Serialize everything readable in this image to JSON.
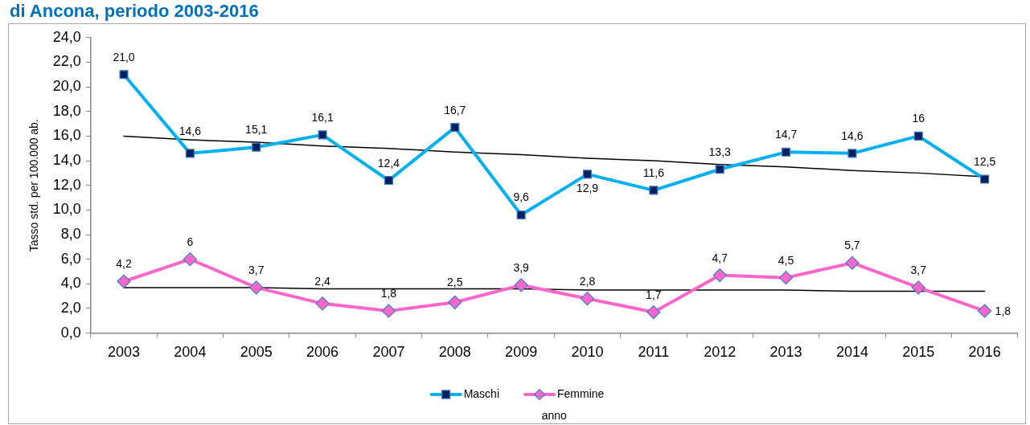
{
  "chart_data": {
    "type": "line",
    "title": "di Ancona, periodo 2003-2016",
    "xlabel": "anno",
    "ylabel": "Tasso std. per 100.000 ab.",
    "categories": [
      "2003",
      "2004",
      "2005",
      "2006",
      "2007",
      "2008",
      "2009",
      "2010",
      "2011",
      "2012",
      "2013",
      "2014",
      "2015",
      "2016"
    ],
    "ylim": [
      0,
      24
    ],
    "yticks": [
      {
        "value": 0,
        "label": "0,0"
      },
      {
        "value": 2,
        "label": "2,0"
      },
      {
        "value": 4,
        "label": "4,0"
      },
      {
        "value": 6,
        "label": "6,0"
      },
      {
        "value": 8,
        "label": "8,0"
      },
      {
        "value": 10,
        "label": "10,0"
      },
      {
        "value": 12,
        "label": "12,0"
      },
      {
        "value": 14,
        "label": "14,0"
      },
      {
        "value": 16,
        "label": "16,0"
      },
      {
        "value": 18,
        "label": "18,0"
      },
      {
        "value": 20,
        "label": "20,0"
      },
      {
        "value": 22,
        "label": "22,0"
      },
      {
        "value": 24,
        "label": "24,0"
      }
    ],
    "legend": "bottom",
    "series": [
      {
        "name": "Maschi",
        "color": "#00b0f0",
        "colors": [
          "#002060",
          "#002060",
          "#002060",
          "#002060",
          "#002060",
          "#002060",
          "#002060",
          "#002060",
          "#002060",
          "#002060",
          "#002060",
          "#002060",
          "#002060",
          "#002060"
        ],
        "marker": "square",
        "values": [
          21.0,
          14.6,
          15.1,
          16.1,
          12.4,
          16.7,
          9.6,
          12.9,
          11.6,
          13.3,
          14.7,
          14.6,
          16,
          12.5
        ],
        "value_labels": [
          "21,0",
          "14,6",
          "15,1",
          "16,1",
          "12,4",
          "16,7",
          "9,6",
          "12,9",
          "11,6",
          "13,3",
          "14,7",
          "14,6",
          "16",
          "12,5"
        ]
      },
      {
        "name": "Femmine",
        "color": "#ff66cc",
        "marker": "diamond",
        "values": [
          4.2,
          6,
          3.7,
          2.4,
          1.8,
          2.5,
          3.9,
          2.8,
          1.7,
          4.7,
          4.5,
          5.7,
          3.7,
          1.8
        ],
        "value_labels": [
          "4,2",
          "6",
          "3,7",
          "2,4",
          "1,8",
          "2,5",
          "3,9",
          "2,8",
          "1,7",
          "4,7",
          "4,5",
          "5,7",
          "3,7",
          "1,8"
        ]
      },
      {
        "type": "line",
        "color": "#000000",
        "marker": "none",
        "values": [
          16.0,
          15.7,
          15.5,
          15.2,
          15.0,
          14.7,
          14.5,
          14.2,
          14.0,
          13.7,
          13.5,
          13.2,
          13.0,
          12.7
        ]
      },
      {
        "type": "line",
        "color": "#000000",
        "marker": "none",
        "values": [
          3.7,
          3.7,
          3.7,
          3.6,
          3.6,
          3.6,
          3.6,
          3.5,
          3.5,
          3.5,
          3.5,
          3.4,
          3.4,
          3.4
        ]
      }
    ]
  }
}
